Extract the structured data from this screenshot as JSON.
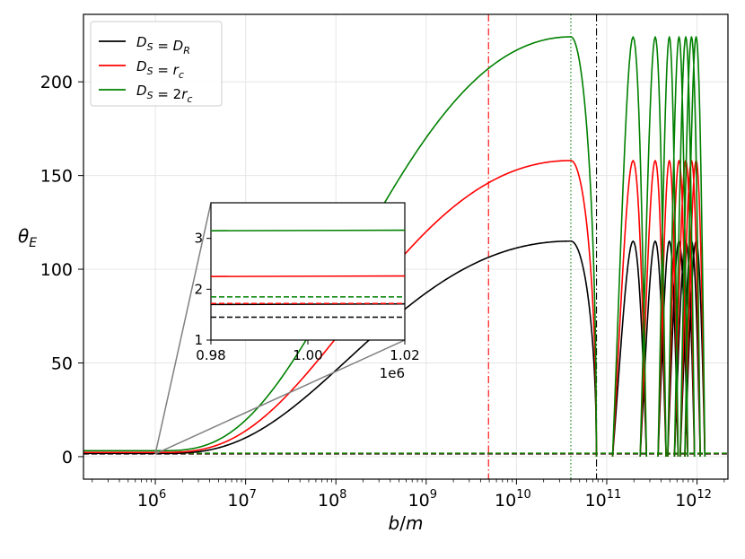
{
  "chart_data": {
    "type": "line",
    "xlabel": "b/m",
    "ylabel": "θE",
    "x_scale": "log",
    "xlim": [
      160000.0,
      2200000000000.0
    ],
    "ylim": [
      -12,
      236
    ],
    "yticks": [
      0,
      50,
      100,
      150,
      200
    ],
    "xtick_exponents": [
      6,
      7,
      8,
      9,
      10,
      11,
      12
    ],
    "grid": true,
    "legend_position": "top-left",
    "legend": [
      {
        "label": "D_S = D_R",
        "color": "#000000"
      },
      {
        "label": "D_S = r_c",
        "color": "#ff0000"
      },
      {
        "label": "D_S = 2r_c",
        "color": "#008000"
      }
    ],
    "series": [
      {
        "name": "D_S = D_R",
        "color": "#000000",
        "peak": 115,
        "base": 1.7,
        "dashed_level": 1.45
      },
      {
        "name": "D_S = r_c",
        "color": "#ff0000",
        "peak": 158,
        "base": 2.25,
        "dashed_level": 1.72
      },
      {
        "name": "D_S = 2r_c",
        "color": "#008000",
        "peak": 224,
        "base": 3.15,
        "dashed_level": 1.85
      }
    ],
    "peak_x": 40000000000.0,
    "zero_x": 77000000000.0,
    "oscillation_peaks_x": [
      200000000000.0,
      350000000000.0,
      500000000000.0,
      640000000000.0,
      760000000000.0,
      880000000000.0,
      990000000000.0
    ],
    "vlines": [
      {
        "x": 4900000000.0,
        "color": "#ff0000",
        "style": "dashdot"
      },
      {
        "x": 40000000000.0,
        "color": "#008000",
        "style": "dotted"
      },
      {
        "x": 77000000000.0,
        "color": "#000000",
        "style": "dashdot"
      }
    ],
    "inset": {
      "xlim": [
        0.98,
        1.02
      ],
      "ylim": [
        1,
        3.7
      ],
      "xticks": [
        "0.98",
        "1.00",
        "1.02"
      ],
      "yticks": [
        "1",
        "2",
        "3"
      ],
      "offset_text": "1e6"
    }
  }
}
